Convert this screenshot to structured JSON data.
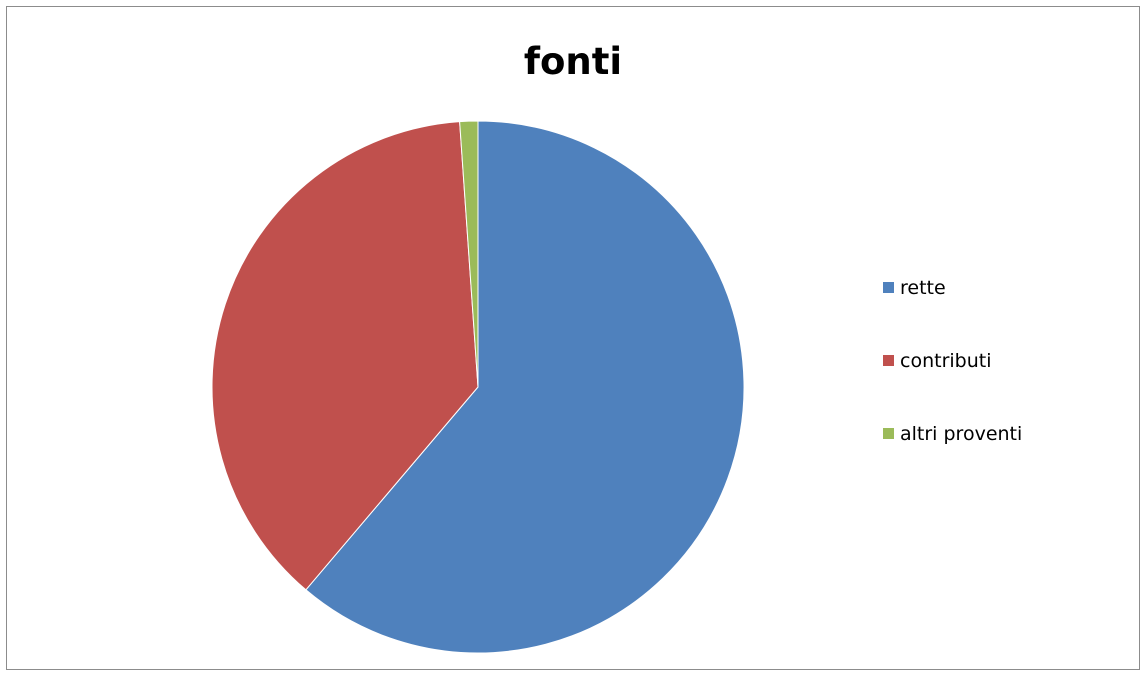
{
  "chart_data": {
    "type": "pie",
    "title": "fonti",
    "categories": [
      "rette",
      "contributi",
      "altri proventi"
    ],
    "values": [
      61.2,
      37.7,
      1.1
    ],
    "colors": [
      "#4f81bd",
      "#c0504d",
      "#9bbb59"
    ],
    "start_angle_deg": 0,
    "direction": "clockwise",
    "legend": "right"
  }
}
